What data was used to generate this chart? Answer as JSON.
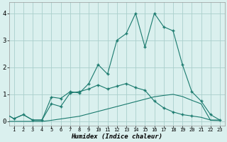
{
  "x": [
    0,
    1,
    2,
    3,
    4,
    5,
    6,
    7,
    8,
    9,
    10,
    11,
    12,
    13,
    14,
    15,
    16,
    17,
    18,
    19,
    20,
    21,
    22,
    23
  ],
  "line_top": [
    0.3,
    0.1,
    0.25,
    0.05,
    0.05,
    0.9,
    0.85,
    1.1,
    1.05,
    1.4,
    2.1,
    1.75,
    3.0,
    3.25,
    4.0,
    2.75,
    4.0,
    3.5,
    3.35,
    2.1,
    1.1,
    0.75,
    0.25,
    0.05
  ],
  "line_mid": [
    0.3,
    0.1,
    0.25,
    0.05,
    0.05,
    0.65,
    0.55,
    1.05,
    1.1,
    1.2,
    1.35,
    1.2,
    1.3,
    1.4,
    1.25,
    1.15,
    0.75,
    0.5,
    0.35,
    0.25,
    0.2,
    0.15,
    0.05,
    0.05
  ],
  "line_bot": [
    0.0,
    0.0,
    0.0,
    0.0,
    0.0,
    0.04,
    0.09,
    0.14,
    0.19,
    0.28,
    0.37,
    0.46,
    0.55,
    0.64,
    0.73,
    0.82,
    0.91,
    0.96,
    1.0,
    0.92,
    0.78,
    0.65,
    0.04,
    0.03
  ],
  "line_color": "#1a7a6e",
  "bg_color": "#daf0ee",
  "grid_color": "#aacfcc",
  "xlabel": "Humidex (Indice chaleur)",
  "yticks": [
    0,
    1,
    2,
    3,
    4
  ],
  "xtick_labels": [
    "1",
    "2",
    "3",
    "4",
    "5",
    "6",
    "7",
    "8",
    "9",
    "10",
    "11",
    "12",
    "13",
    "14",
    "15",
    "16",
    "17",
    "18",
    "19",
    "20",
    "21",
    "22",
    "23"
  ],
  "ylim": [
    -0.15,
    4.4
  ],
  "xlim": [
    0.5,
    23.5
  ]
}
